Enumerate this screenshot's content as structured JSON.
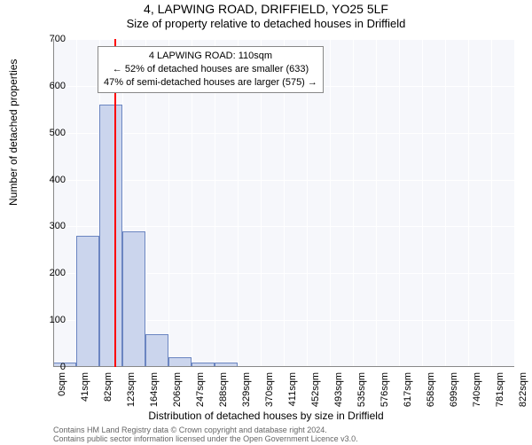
{
  "title": "4, LAPWING ROAD, DRIFFIELD, YO25 5LF",
  "subtitle": "Size of property relative to detached houses in Driffield",
  "chart": {
    "type": "histogram",
    "background_color": "#f6f7fb",
    "grid_color": "#ffffff",
    "bar_fill": "#cbd5ed",
    "bar_border": "#6b85c1",
    "ylim": [
      0,
      700
    ],
    "ytick_step": 100,
    "x_labels": [
      "0sqm",
      "41sqm",
      "82sqm",
      "123sqm",
      "164sqm",
      "206sqm",
      "247sqm",
      "288sqm",
      "329sqm",
      "370sqm",
      "411sqm",
      "452sqm",
      "493sqm",
      "535sqm",
      "576sqm",
      "617sqm",
      "658sqm",
      "699sqm",
      "740sqm",
      "781sqm",
      "822sqm"
    ],
    "values": [
      10,
      280,
      560,
      290,
      70,
      20,
      10,
      10,
      0,
      0,
      0,
      0,
      0,
      0,
      0,
      0,
      0,
      0,
      0,
      0
    ],
    "marker": {
      "color": "#ff0000",
      "bin_index": 2,
      "fraction": 0.7
    },
    "yaxis_title": "Number of detached properties",
    "xaxis_title": "Distribution of detached houses by size in Driffield",
    "label_fontsize": 12,
    "tick_fontsize": 11
  },
  "annotation": {
    "lines": [
      "4 LAPWING ROAD: 110sqm",
      "← 52% of detached houses are smaller (633)",
      "47% of semi-detached houses are larger (575) →"
    ]
  },
  "footer": {
    "line1": "Contains HM Land Registry data © Crown copyright and database right 2024.",
    "line2": "Contains public sector information licensed under the Open Government Licence v3.0."
  }
}
